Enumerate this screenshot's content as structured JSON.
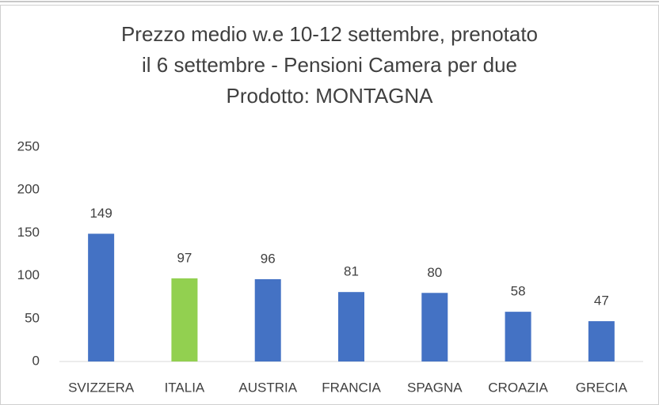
{
  "chart_data": {
    "type": "bar",
    "title": [
      "Prezzo medio w.e 10-12 settembre, prenotato",
      "il 6 settembre - Pensioni Camera per due",
      "Prodotto: MONTAGNA"
    ],
    "categories": [
      "SVIZZERA",
      "ITALIA",
      "AUSTRIA",
      "FRANCIA",
      "SPAGNA",
      "CROAZIA",
      "GRECIA"
    ],
    "values": [
      149,
      97,
      96,
      81,
      80,
      58,
      47
    ],
    "colors": [
      "#4472c4",
      "#92d050",
      "#4472c4",
      "#4472c4",
      "#4472c4",
      "#4472c4",
      "#4472c4"
    ],
    "ylim": [
      0,
      250
    ],
    "yticks": [
      0,
      50,
      100,
      150,
      200,
      250
    ],
    "grid": false,
    "data_labels": true
  }
}
